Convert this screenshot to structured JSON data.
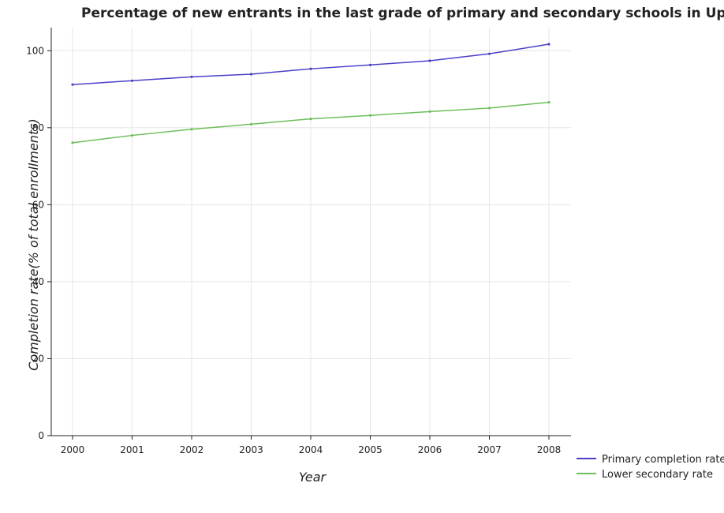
{
  "chart_data": {
    "type": "line",
    "title": "Percentage of new entrants in the last grade of primary  and secondary schools in Upper middle income",
    "xlabel": "Year",
    "ylabel": "Completion rate(% of total enrollments)",
    "categories": [
      "2000",
      "2001",
      "2002",
      "2003",
      "2004",
      "2005",
      "2006",
      "2007",
      "2008"
    ],
    "yticks": [
      0,
      20,
      40,
      60,
      80,
      100
    ],
    "ylim": [
      0,
      106
    ],
    "grid": true,
    "legend_position": "bottom-right",
    "series": [
      {
        "name": "Primary completion rate",
        "color": "#4b3fc8",
        "values": [
          91.2,
          92.2,
          93.2,
          93.9,
          95.3,
          96.3,
          97.4,
          99.2,
          101.7
        ]
      },
      {
        "name": "Lower secondary rate",
        "color": "#6cbf5a",
        "values": [
          76.1,
          78.0,
          79.6,
          80.9,
          82.3,
          83.2,
          84.2,
          85.1,
          86.6
        ]
      }
    ]
  }
}
